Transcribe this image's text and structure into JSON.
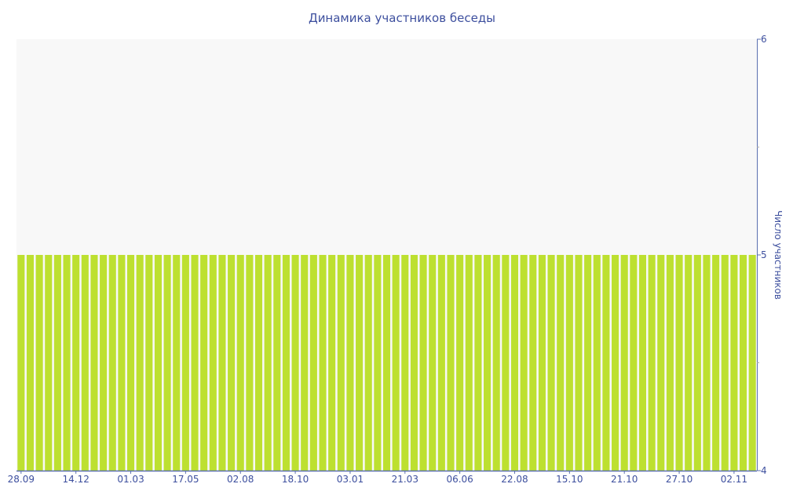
{
  "chart_data": {
    "type": "bar",
    "title": "Динамика участников беседы",
    "ylabel": "Число участников",
    "xlabel": "",
    "ylim": [
      4,
      6
    ],
    "y_ticks": [
      4,
      5,
      6
    ],
    "y_axis_side": "right",
    "x_tick_labels": [
      "28.09",
      "14.12",
      "01.03",
      "17.05",
      "02.08",
      "18.10",
      "03.01",
      "21.03",
      "06.06",
      "22.08",
      "15.10",
      "21.10",
      "27.10",
      "02.11"
    ],
    "x_tick_every_n_bars": 6,
    "values": [
      5,
      5,
      5,
      5,
      5,
      5,
      5,
      5,
      5,
      5,
      5,
      5,
      5,
      5,
      5,
      5,
      5,
      5,
      5,
      5,
      5,
      5,
      5,
      5,
      5,
      5,
      5,
      5,
      5,
      5,
      5,
      5,
      5,
      5,
      5,
      5,
      5,
      5,
      5,
      5,
      5,
      5,
      5,
      5,
      5,
      5,
      5,
      5,
      5,
      5,
      5,
      5,
      5,
      5,
      5,
      5,
      5,
      5,
      5,
      5,
      5,
      5,
      5,
      5,
      5,
      5,
      5,
      5,
      5,
      5,
      5,
      5,
      5,
      5,
      5,
      5,
      5,
      5,
      5,
      5,
      5
    ],
    "grid": false,
    "legend": "none",
    "colors": {
      "bar": "#bde030",
      "plot_bg": "#f8f8f8",
      "text": "#3d4f9e",
      "axis": "#5b6fb0"
    }
  }
}
